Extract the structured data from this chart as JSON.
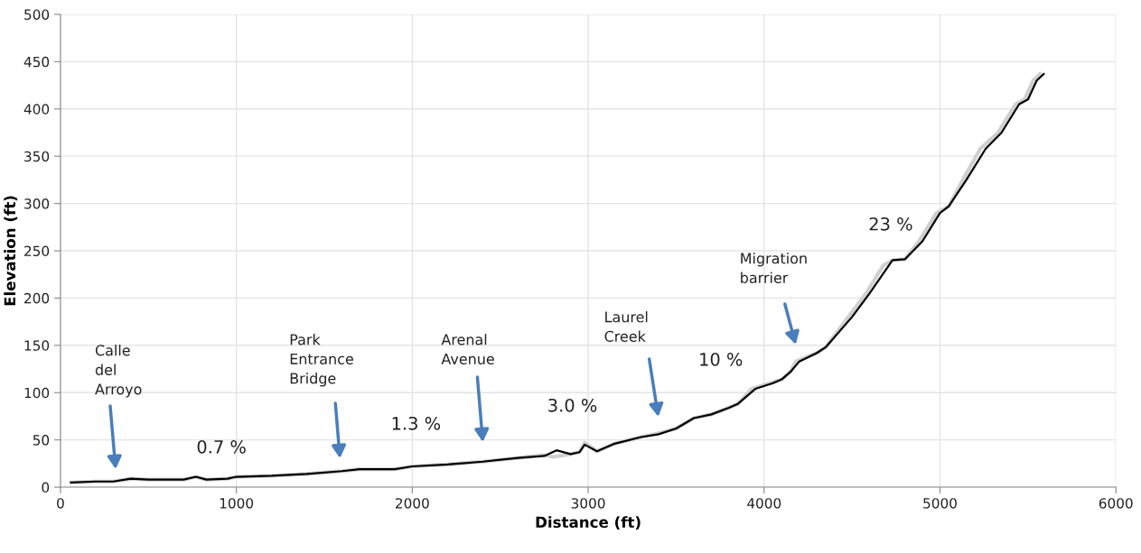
{
  "chart_data": {
    "type": "line",
    "xlabel": "Distance (ft)",
    "ylabel": "Elevation (ft)",
    "xlim": [
      0,
      6000
    ],
    "xticks": [
      0,
      1000,
      2000,
      3000,
      4000,
      5000,
      6000
    ],
    "ylim": [
      0,
      500
    ],
    "yticks": [
      0,
      50,
      100,
      150,
      200,
      250,
      300,
      350,
      400,
      450,
      500
    ],
    "grid": true,
    "legend": false,
    "marker": "none",
    "line_style": "solid",
    "series": [
      {
        "color": "#d0d0d0",
        "x": [
          60,
          200,
          300,
          400,
          500,
          700,
          770,
          830,
          950,
          1000,
          1200,
          1400,
          1600,
          1700,
          1900,
          2000,
          2200,
          2400,
          2600,
          2750,
          2800,
          2900,
          2950,
          2980,
          3050,
          3150,
          3300,
          3400,
          3500,
          3600,
          3700,
          3800,
          3850,
          3930,
          4050,
          4100,
          4150,
          4180,
          4300,
          4350,
          4480,
          4580,
          4680,
          4730,
          4800,
          4880,
          4980,
          5050,
          5130,
          5230,
          5330,
          5430,
          5480,
          5530,
          5570
        ],
        "values": [
          5,
          6,
          6,
          9,
          8,
          8,
          11,
          8,
          9,
          11,
          12,
          14,
          17,
          19,
          19,
          22,
          24,
          27,
          31,
          34,
          32,
          35,
          37,
          47,
          38,
          46,
          53,
          57,
          62,
          73,
          77,
          84,
          88,
          104,
          111,
          114,
          122,
          133,
          142,
          148,
          180,
          205,
          235,
          240,
          241,
          260,
          290,
          297,
          325,
          358,
          375,
          405,
          410,
          430,
          437
        ]
      },
      {
        "color": "#000000",
        "x": [
          60,
          200,
          300,
          400,
          500,
          700,
          770,
          830,
          950,
          1000,
          1200,
          1400,
          1600,
          1700,
          1900,
          2000,
          2200,
          2400,
          2600,
          2750,
          2820,
          2900,
          2950,
          2980,
          3050,
          3150,
          3300,
          3400,
          3500,
          3600,
          3700,
          3800,
          3850,
          3950,
          4050,
          4100,
          4150,
          4200,
          4300,
          4350,
          4500,
          4600,
          4730,
          4800,
          4900,
          5000,
          5050,
          5150,
          5260,
          5350,
          5450,
          5500,
          5550,
          5590
        ],
        "values": [
          5,
          6,
          6,
          9,
          8,
          8,
          11,
          8,
          9,
          11,
          12,
          14,
          17,
          19,
          19,
          22,
          24,
          27,
          31,
          33,
          39,
          35,
          37,
          45,
          38,
          46,
          53,
          56,
          62,
          73,
          77,
          84,
          88,
          104,
          110,
          114,
          122,
          133,
          142,
          148,
          180,
          205,
          240,
          241,
          260,
          290,
          297,
          325,
          358,
          375,
          405,
          410,
          430,
          437
        ]
      }
    ],
    "annotations": [
      "Calle\ndel\nArroyo",
      "Park\nEntrance\nBridge",
      "Arenal\nAvenue",
      "Laurel\nCreek",
      "Migration\nbarrier",
      "0.7 %",
      "1.3 %",
      "3.0 %",
      "10 %",
      "23 %"
    ]
  }
}
